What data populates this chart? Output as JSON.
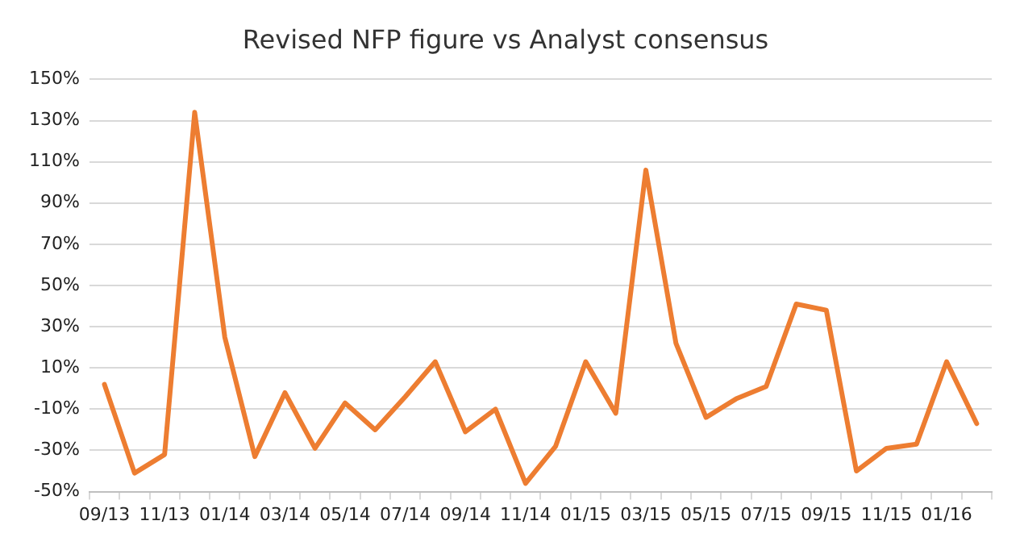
{
  "chart_data": {
    "type": "line",
    "title": "Revised NFP figure vs Analyst consensus",
    "categories": [
      "09/13",
      null,
      "11/13",
      null,
      "01/14",
      null,
      "03/14",
      null,
      "05/14",
      null,
      "07/14",
      null,
      "09/14",
      null,
      "11/14",
      null,
      "01/15",
      null,
      "03/15",
      null,
      "05/15",
      null,
      "07/15",
      null,
      "09/15",
      null,
      "11/15",
      null,
      "01/16",
      null
    ],
    "series": [
      {
        "color": "#ed7d31",
        "values": [
          2,
          -41,
          -32,
          134,
          25,
          -33,
          -2,
          -29,
          -7,
          -20,
          -4,
          13,
          -21,
          -10,
          -46,
          -28,
          13,
          -12,
          106,
          22,
          -14,
          -5,
          1,
          41,
          38,
          -40,
          -29,
          -27,
          13,
          -17
        ]
      }
    ],
    "ylim": [
      -50,
      150
    ],
    "yticks": [
      {
        "value": -50,
        "label": "-50%"
      },
      {
        "value": -30,
        "label": "-30%"
      },
      {
        "value": -10,
        "label": "-10%"
      },
      {
        "value": 10,
        "label": "10%"
      },
      {
        "value": 30,
        "label": "30%"
      },
      {
        "value": 50,
        "label": "50%"
      },
      {
        "value": 70,
        "label": "70%"
      },
      {
        "value": 90,
        "label": "90%"
      },
      {
        "value": 110,
        "label": "110%"
      },
      {
        "value": 130,
        "label": "130%"
      },
      {
        "value": 150,
        "label": "150%"
      }
    ],
    "grid": "y",
    "marker": "none",
    "line_style": "solid",
    "legend": false
  }
}
